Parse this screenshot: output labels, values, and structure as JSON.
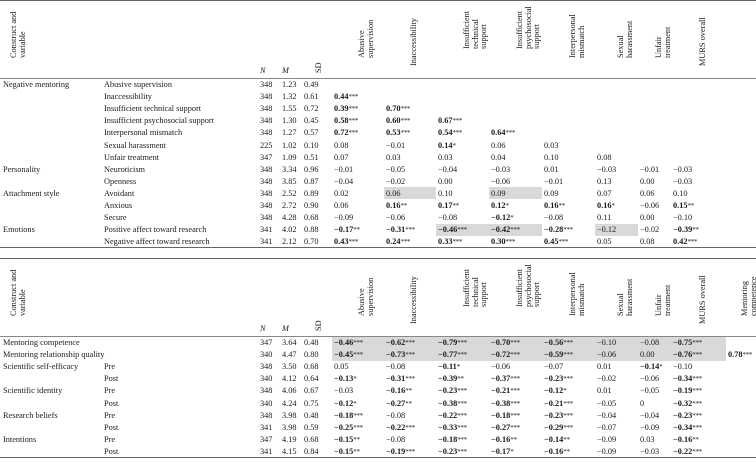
{
  "headers": {
    "construct_lines": [
      "Construct and",
      "variable"
    ],
    "n": "N",
    "m": "M",
    "sd": "SD",
    "cols": [
      [
        "Abusive",
        "supervision"
      ],
      [
        "Inaccessibility"
      ],
      [
        "Insufficient",
        "technical",
        "support"
      ],
      [
        "Insufficient",
        "psychosocial",
        "support"
      ],
      [
        "Interpersonal",
        "mismatch"
      ],
      [
        "Sexual",
        "harassment"
      ],
      [
        "Unfair",
        "treatment"
      ],
      [
        "MURS overall"
      ]
    ],
    "extra_col": [
      "Mentoring",
      "competence"
    ]
  },
  "table1": [
    {
      "construct": "Negative mentoring",
      "variable": "Abusive supervision",
      "n": "348",
      "m": "1.23",
      "sd": "0.49",
      "cells": []
    },
    {
      "construct": "",
      "variable": "Inaccessibility",
      "n": "348",
      "m": "1.32",
      "sd": "0.61",
      "cells": [
        {
          "v": "0.44",
          "s": "***",
          "b": true
        }
      ]
    },
    {
      "construct": "",
      "variable": "Insufficient technical support",
      "n": "348",
      "m": "1.55",
      "sd": "0.72",
      "cells": [
        {
          "v": "0.39",
          "s": "***",
          "b": true
        },
        {
          "v": "0.70",
          "s": "***",
          "b": true
        }
      ]
    },
    {
      "construct": "",
      "variable": "Insufficient psychosocial support",
      "n": "348",
      "m": "1.30",
      "sd": "0.45",
      "cells": [
        {
          "v": "0.58",
          "s": "***",
          "b": true
        },
        {
          "v": "0.60",
          "s": "***",
          "b": true
        },
        {
          "v": "0.67",
          "s": "***",
          "b": true
        }
      ]
    },
    {
      "construct": "",
      "variable": "Interpersonal mismatch",
      "n": "348",
      "m": "1.27",
      "sd": "0.57",
      "cells": [
        {
          "v": "0.72",
          "s": "***",
          "b": true
        },
        {
          "v": "0.53",
          "s": "***",
          "b": true
        },
        {
          "v": "0.54",
          "s": "***",
          "b": true
        },
        {
          "v": "0.64",
          "s": "***",
          "b": true
        }
      ]
    },
    {
      "construct": "",
      "variable": "Sexual harassment",
      "n": "225",
      "m": "1.02",
      "sd": "0.10",
      "cells": [
        {
          "v": "0.08"
        },
        {
          "v": "−0.01"
        },
        {
          "v": "0.14",
          "s": "*",
          "b": true
        },
        {
          "v": "0.06"
        },
        {
          "v": "0.03"
        }
      ]
    },
    {
      "construct": "",
      "variable": "Unfair treatment",
      "n": "347",
      "m": "1.09",
      "sd": "0.51",
      "cells": [
        {
          "v": "0.07"
        },
        {
          "v": "0.03"
        },
        {
          "v": "0.03"
        },
        {
          "v": "0.04"
        },
        {
          "v": "0.10"
        },
        {
          "v": "0.08"
        }
      ]
    },
    {
      "construct": "Personality",
      "variable": "Neuroticism",
      "n": "348",
      "m": "3.34",
      "sd": "0.96",
      "cells": [
        {
          "v": "−0.01"
        },
        {
          "v": "−0.05"
        },
        {
          "v": "−0.04"
        },
        {
          "v": "−0.03"
        },
        {
          "v": "0.01"
        },
        {
          "v": "−0.03"
        },
        {
          "v": "−0.01"
        },
        {
          "v": "−0.03"
        }
      ]
    },
    {
      "construct": "",
      "variable": "Openness",
      "n": "348",
      "m": "3.85",
      "sd": "0.87",
      "cells": [
        {
          "v": "−0.04"
        },
        {
          "v": "−0.02"
        },
        {
          "v": "0.00"
        },
        {
          "v": "−0.06"
        },
        {
          "v": "−0.01"
        },
        {
          "v": "0.13"
        },
        {
          "v": "0.00"
        },
        {
          "v": "−0.03"
        }
      ]
    },
    {
      "construct": "Attachment style",
      "variable": "Avoidant",
      "n": "348",
      "m": "2.52",
      "sd": "0.89",
      "cells": [
        {
          "v": "0.02"
        },
        {
          "v": "0.06",
          "sh": true
        },
        {
          "v": "0.10"
        },
        {
          "v": "0.09",
          "sh": true
        },
        {
          "v": "0.09"
        },
        {
          "v": "0.07"
        },
        {
          "v": "0.06"
        },
        {
          "v": "0.10"
        }
      ]
    },
    {
      "construct": "",
      "variable": "Anxious",
      "n": "348",
      "m": "2.72",
      "sd": "0.90",
      "cells": [
        {
          "v": "0.06"
        },
        {
          "v": "0.16",
          "s": "**",
          "b": true
        },
        {
          "v": "0.17",
          "s": "**",
          "b": true
        },
        {
          "v": "0.12",
          "s": "*",
          "b": true
        },
        {
          "v": "0.16",
          "s": "**",
          "b": true
        },
        {
          "v": "0.16",
          "s": "*",
          "b": true
        },
        {
          "v": "−0.06"
        },
        {
          "v": "0.15",
          "s": "**",
          "b": true
        }
      ]
    },
    {
      "construct": "",
      "variable": "Secure",
      "n": "348",
      "m": "4.28",
      "sd": "0.68",
      "cells": [
        {
          "v": "−0.09"
        },
        {
          "v": "−0.06"
        },
        {
          "v": "−0.08"
        },
        {
          "v": "−0.12",
          "s": "*",
          "b": true
        },
        {
          "v": "−0.08"
        },
        {
          "v": "0.11"
        },
        {
          "v": "0.00"
        },
        {
          "v": "−0.10"
        }
      ]
    },
    {
      "construct": "Emotions",
      "variable": "Positive affect toward research",
      "n": "341",
      "m": "4.02",
      "sd": "0.88",
      "cells": [
        {
          "v": "−0.17",
          "s": "**",
          "b": true
        },
        {
          "v": "−0.31",
          "s": "***",
          "b": true
        },
        {
          "v": "−0.46",
          "s": "***",
          "b": true,
          "sh": true
        },
        {
          "v": "−0.42",
          "s": "***",
          "b": true,
          "sh": true
        },
        {
          "v": "−0.28",
          "s": "***",
          "b": true
        },
        {
          "v": "−0.12",
          "sh": true
        },
        {
          "v": "−0.02"
        },
        {
          "v": "−0.39",
          "s": "**",
          "b": true
        }
      ]
    },
    {
      "construct": "",
      "variable": "Negative affect toward research",
      "n": "341",
      "m": "2.12",
      "sd": "0.70",
      "cells": [
        {
          "v": "0.43",
          "s": "***",
          "b": true
        },
        {
          "v": "0.24",
          "s": "***",
          "b": true
        },
        {
          "v": "0.33",
          "s": "***",
          "b": true
        },
        {
          "v": "0.30",
          "s": "***",
          "b": true
        },
        {
          "v": "0.45",
          "s": "***",
          "b": true
        },
        {
          "v": "0.05"
        },
        {
          "v": "0.08"
        },
        {
          "v": "0.42",
          "s": "***",
          "b": true
        }
      ]
    }
  ],
  "table2": [
    {
      "construct": "Mentoring competence",
      "variable": "",
      "n": "347",
      "m": "3.64",
      "sd": "0.48",
      "cells": [
        {
          "v": "−0.46",
          "s": "***",
          "b": true,
          "sh": true
        },
        {
          "v": "−0.62",
          "s": "***",
          "b": true,
          "sh": true
        },
        {
          "v": "−0.79",
          "s": "***",
          "b": true,
          "sh": true
        },
        {
          "v": "−0.70",
          "s": "***",
          "b": true,
          "sh": true
        },
        {
          "v": "−0.56",
          "s": "***",
          "b": true,
          "sh": true
        },
        {
          "v": "−0.10",
          "sh": true
        },
        {
          "v": "−0.08",
          "sh": true
        },
        {
          "v": "−0.75",
          "s": "***",
          "b": true,
          "sh": true
        }
      ],
      "extra": null
    },
    {
      "construct": "Mentoring relationship quality",
      "variable": "",
      "n": "340",
      "m": "4.47",
      "sd": "0.80",
      "cells": [
        {
          "v": "−0.45",
          "s": "***",
          "b": true,
          "sh": true
        },
        {
          "v": "−0.73",
          "s": "***",
          "b": true,
          "sh": true
        },
        {
          "v": "−0.77",
          "s": "***",
          "b": true,
          "sh": true
        },
        {
          "v": "−0.72",
          "s": "***",
          "b": true,
          "sh": true
        },
        {
          "v": "−0.59",
          "s": "***",
          "b": true,
          "sh": true
        },
        {
          "v": "−0.06",
          "sh": true
        },
        {
          "v": "0.00",
          "sh": true
        },
        {
          "v": "−0.76",
          "s": "***",
          "b": true,
          "sh": true
        }
      ],
      "extra": {
        "v": "0.78",
        "s": "***",
        "b": true
      }
    },
    {
      "construct": "Scientific self-efficacy",
      "variable": "Pre",
      "n": "348",
      "m": "3.50",
      "sd": "0.68",
      "cells": [
        {
          "v": "0.05"
        },
        {
          "v": "−0.08"
        },
        {
          "v": "−0.11",
          "s": "*",
          "b": true
        },
        {
          "v": "−0.06"
        },
        {
          "v": "−0.07"
        },
        {
          "v": "0.01"
        },
        {
          "v": "−0.14",
          "s": "*",
          "b": true
        },
        {
          "v": "−0.10"
        }
      ]
    },
    {
      "construct": "",
      "variable": "Post",
      "n": "340",
      "m": "4.12",
      "sd": "0.64",
      "cells": [
        {
          "v": "−0.13",
          "s": "*",
          "b": true
        },
        {
          "v": "−0.31",
          "s": "***",
          "b": true
        },
        {
          "v": "−0.39",
          "s": "**",
          "b": true
        },
        {
          "v": "−0.37",
          "s": "***",
          "b": true
        },
        {
          "v": "−0.23",
          "s": "***",
          "b": true
        },
        {
          "v": "−0.02"
        },
        {
          "v": "−0.06"
        },
        {
          "v": "−0.34",
          "s": "***",
          "b": true
        }
      ]
    },
    {
      "construct": "Scientific identity",
      "variable": "Pre",
      "n": "348",
      "m": "4.06",
      "sd": "0.67",
      "cells": [
        {
          "v": "−0.03"
        },
        {
          "v": "−0.16",
          "s": "**",
          "b": true
        },
        {
          "v": "−0.23",
          "s": "***",
          "b": true
        },
        {
          "v": "−0.21",
          "s": "***",
          "b": true
        },
        {
          "v": "−0.12",
          "s": "*",
          "b": true
        },
        {
          "v": "0.01"
        },
        {
          "v": "−0.05"
        },
        {
          "v": "−0.19",
          "s": "***",
          "b": true
        }
      ]
    },
    {
      "construct": "",
      "variable": "Post",
      "n": "340",
      "m": "4.24",
      "sd": "0.75",
      "cells": [
        {
          "v": "−0.12",
          "s": "*",
          "b": true
        },
        {
          "v": "−0.27",
          "s": "**",
          "b": true
        },
        {
          "v": "−0.38",
          "s": "***",
          "b": true
        },
        {
          "v": "−0.38",
          "s": "***",
          "b": true
        },
        {
          "v": "−0.21",
          "s": "***",
          "b": true
        },
        {
          "v": "−0.05"
        },
        {
          "v": "0"
        },
        {
          "v": "−0.32",
          "s": "***",
          "b": true
        }
      ]
    },
    {
      "construct": "Research beliefs",
      "variable": "Pre",
      "n": "348",
      "m": "3.98",
      "sd": "0.48",
      "cells": [
        {
          "v": "−0.18",
          "s": "***",
          "b": true
        },
        {
          "v": "−0.08"
        },
        {
          "v": "−0.22",
          "s": "***",
          "b": true
        },
        {
          "v": "−0.18",
          "s": "***",
          "b": true
        },
        {
          "v": "−0.23",
          "s": "***",
          "b": true
        },
        {
          "v": "−0.04"
        },
        {
          "v": "−0.04"
        },
        {
          "v": "−0.23",
          "s": "***",
          "b": true
        }
      ]
    },
    {
      "construct": "",
      "variable": "Post",
      "n": "341",
      "m": "3.98",
      "sd": "0.59",
      "cells": [
        {
          "v": "−0.25",
          "s": "***",
          "b": true
        },
        {
          "v": "−0.22",
          "s": "***",
          "b": true
        },
        {
          "v": "−0.33",
          "s": "***",
          "b": true
        },
        {
          "v": "−0.27",
          "s": "***",
          "b": true
        },
        {
          "v": "−0.29",
          "s": "***",
          "b": true
        },
        {
          "v": "−0.07"
        },
        {
          "v": "−0.09"
        },
        {
          "v": "−0.34",
          "s": "***",
          "b": true
        }
      ]
    },
    {
      "construct": "Intentions",
      "variable": "Pre",
      "n": "347",
      "m": "4.19",
      "sd": "0.68",
      "cells": [
        {
          "v": "−0.15",
          "s": "**",
          "b": true
        },
        {
          "v": "−0.08"
        },
        {
          "v": "−0.18",
          "s": "***",
          "b": true
        },
        {
          "v": "−0.16",
          "s": "**",
          "b": true
        },
        {
          "v": "−0.14",
          "s": "**",
          "b": true
        },
        {
          "v": "−0.09"
        },
        {
          "v": "0.03"
        },
        {
          "v": "−0.16",
          "s": "**",
          "b": true
        }
      ]
    },
    {
      "construct": "",
      "variable": "Post",
      "n": "341",
      "m": "4.15",
      "sd": "0.84",
      "cells": [
        {
          "v": "−0.15",
          "s": "**",
          "b": true
        },
        {
          "v": "−0.19",
          "s": "***",
          "b": true
        },
        {
          "v": "−0.23",
          "s": "***",
          "b": true
        },
        {
          "v": "−0.17",
          "s": "*",
          "b": true
        },
        {
          "v": "−0.16",
          "s": "**",
          "b": true
        },
        {
          "v": "−0.09"
        },
        {
          "v": "−0.03"
        },
        {
          "v": "−0.22",
          "s": "***",
          "b": true
        }
      ]
    }
  ]
}
